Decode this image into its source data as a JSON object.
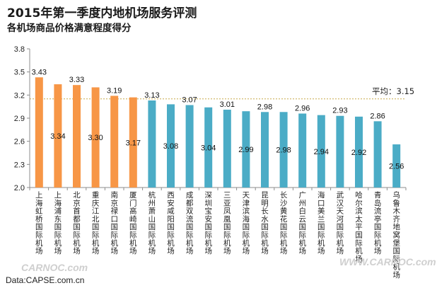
{
  "header": {
    "title": "2015年第一季度内地机场服务评测",
    "subtitle": "各机场商品价格满意程度得分"
  },
  "footer": {
    "source": "Data:CAPSE.com.cn"
  },
  "watermarks": [
    "CARNOC.com",
    "WWW.CARNOC.com"
  ],
  "colors": {
    "orange": "#f79646",
    "blue": "#4bacc6",
    "avg_line": "#c8a94a"
  },
  "chart_data": {
    "type": "bar",
    "title": "2015年第一季度内地机场服务评测",
    "subtitle": "各机场商品价格满意程度得分",
    "xlabel": "",
    "ylabel": "",
    "ylim": [
      2.0,
      3.8
    ],
    "yticks": [
      "2.0",
      "2.3",
      "2.6",
      "2.9",
      "3.2",
      "3.5",
      "3.8"
    ],
    "categories": [
      "上海虹桥国际机场",
      "上海浦东国际机场",
      "北京首都国际机场",
      "重庆江北国际机场",
      "南京禄口国际机场",
      "厦门高崎国际机场",
      "杭州萧山国际机场",
      "西安咸阳国际机场",
      "成都双流国际机场",
      "深圳宝安国际机场",
      "三亚凤凰国际机场",
      "天津滨海国际机场",
      "昆明长水国际机场",
      "长沙黄花国际机场",
      "广州白云国际机场",
      "海口美兰国际机场",
      "武汉天河国际机场",
      "哈尔滨太平国际机场",
      "青岛流亭国际机场",
      "乌鲁木齐地窝堡国际机场"
    ],
    "values": [
      3.43,
      3.34,
      3.33,
      3.3,
      3.19,
      3.17,
      3.13,
      3.08,
      3.07,
      3.04,
      3.01,
      2.99,
      2.98,
      2.98,
      2.96,
      2.94,
      2.93,
      2.92,
      2.86,
      2.56
    ],
    "value_labels": [
      "3.43",
      "3.34",
      "3.33",
      "3.30",
      "3.19",
      "3.17",
      "3.13",
      "3.08",
      "3.07",
      "3.04",
      "3.01",
      "2.99",
      "2.98",
      "2.98",
      "2.96",
      "2.94",
      "2.93",
      "2.92",
      "2.86",
      "2.56"
    ],
    "colors": [
      "orange",
      "orange",
      "orange",
      "orange",
      "orange",
      "orange",
      "blue",
      "blue",
      "blue",
      "blue",
      "blue",
      "blue",
      "blue",
      "blue",
      "blue",
      "blue",
      "blue",
      "blue",
      "blue",
      "blue"
    ],
    "average": {
      "value": 3.15,
      "label": "平均：3.15"
    },
    "grid": false
  }
}
